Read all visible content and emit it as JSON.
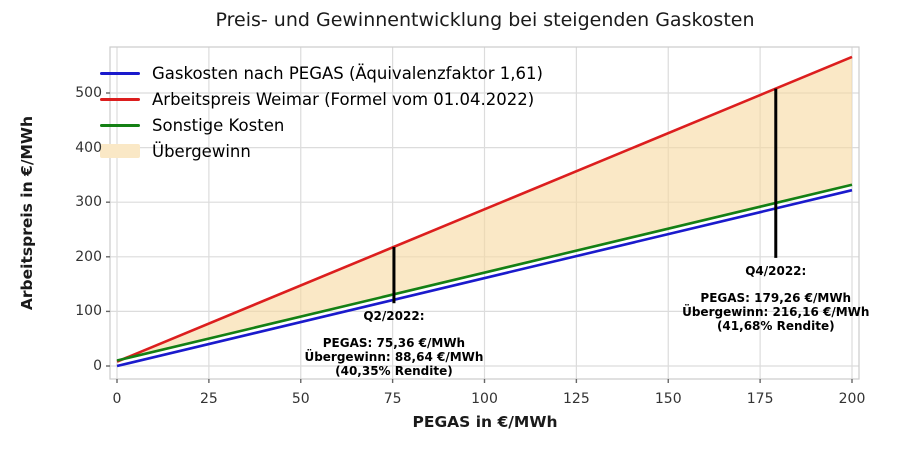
{
  "chart_data": {
    "type": "line",
    "title": "Preis- und Gewinnentwicklung bei steigenden Gaskosten",
    "xlabel": "PEGAS in €/MWh",
    "ylabel": "Arbeitspreis in €/MWh",
    "xticks": [
      0,
      25,
      50,
      75,
      100,
      125,
      150,
      175,
      200
    ],
    "yticks": [
      0,
      100,
      200,
      300,
      400,
      500
    ],
    "xlim": [
      0,
      200
    ],
    "ylim": [
      -25,
      585
    ],
    "grid": true,
    "legend_position": "upper-left",
    "colors": {
      "grid": "#DCDCDC",
      "spine": "#CCCCCC",
      "tick": "#666666",
      "marker": "#000000",
      "fill_effective": "#FAE8C6"
    },
    "series": [
      {
        "name": "Gaskosten nach PEGAS (Äquivalenzfaktor 1,61)",
        "color": "#1A1ACC",
        "x": [
          0,
          200
        ],
        "y": [
          0,
          322
        ]
      },
      {
        "name": "Arbeitspreis Weimar (Formel vom 01.04.2022)",
        "color": "#DC1E1E",
        "x": [
          0,
          200
        ],
        "y": [
          8,
          566
        ]
      },
      {
        "name": "Sonstige Kosten",
        "color": "#148014",
        "x": [
          0,
          200
        ],
        "y": [
          10,
          332
        ]
      }
    ],
    "fill": {
      "label": "Übergewinn",
      "upper": 1,
      "lower": 2,
      "color": "#F7D9A0",
      "opacity": 0.6
    },
    "legend": {
      "entries": [
        {
          "label": "Gaskosten nach PEGAS (Äquivalenzfaktor 1,61)",
          "swatch": "line",
          "color": "#1A1ACC"
        },
        {
          "label": "Arbeitspreis Weimar (Formel vom 01.04.2022)",
          "swatch": "line",
          "color": "#DC1E1E"
        },
        {
          "label": "Sonstige Kosten",
          "swatch": "line",
          "color": "#148014"
        },
        {
          "label": "Übergewinn",
          "swatch": "patch",
          "color": "#FAE8C6"
        }
      ]
    },
    "annotations": [
      {
        "header": "Q2/2022:",
        "lines": [
          "PEGAS: 75,36 €/MWh",
          "Übergewinn: 88,64 €/MWh",
          "(40,35% Rendite)"
        ],
        "x": 75.36,
        "marker": {
          "y_top": 218,
          "y_bottom": 115
        }
      },
      {
        "header": "Q4/2022:",
        "lines": [
          "PEGAS: 179,26 €/MWh",
          "Übergewinn: 216,16 €/MWh",
          "(41,68% Rendite)"
        ],
        "x": 179.26,
        "marker": {
          "y_top": 508,
          "y_bottom": 198
        }
      }
    ]
  }
}
